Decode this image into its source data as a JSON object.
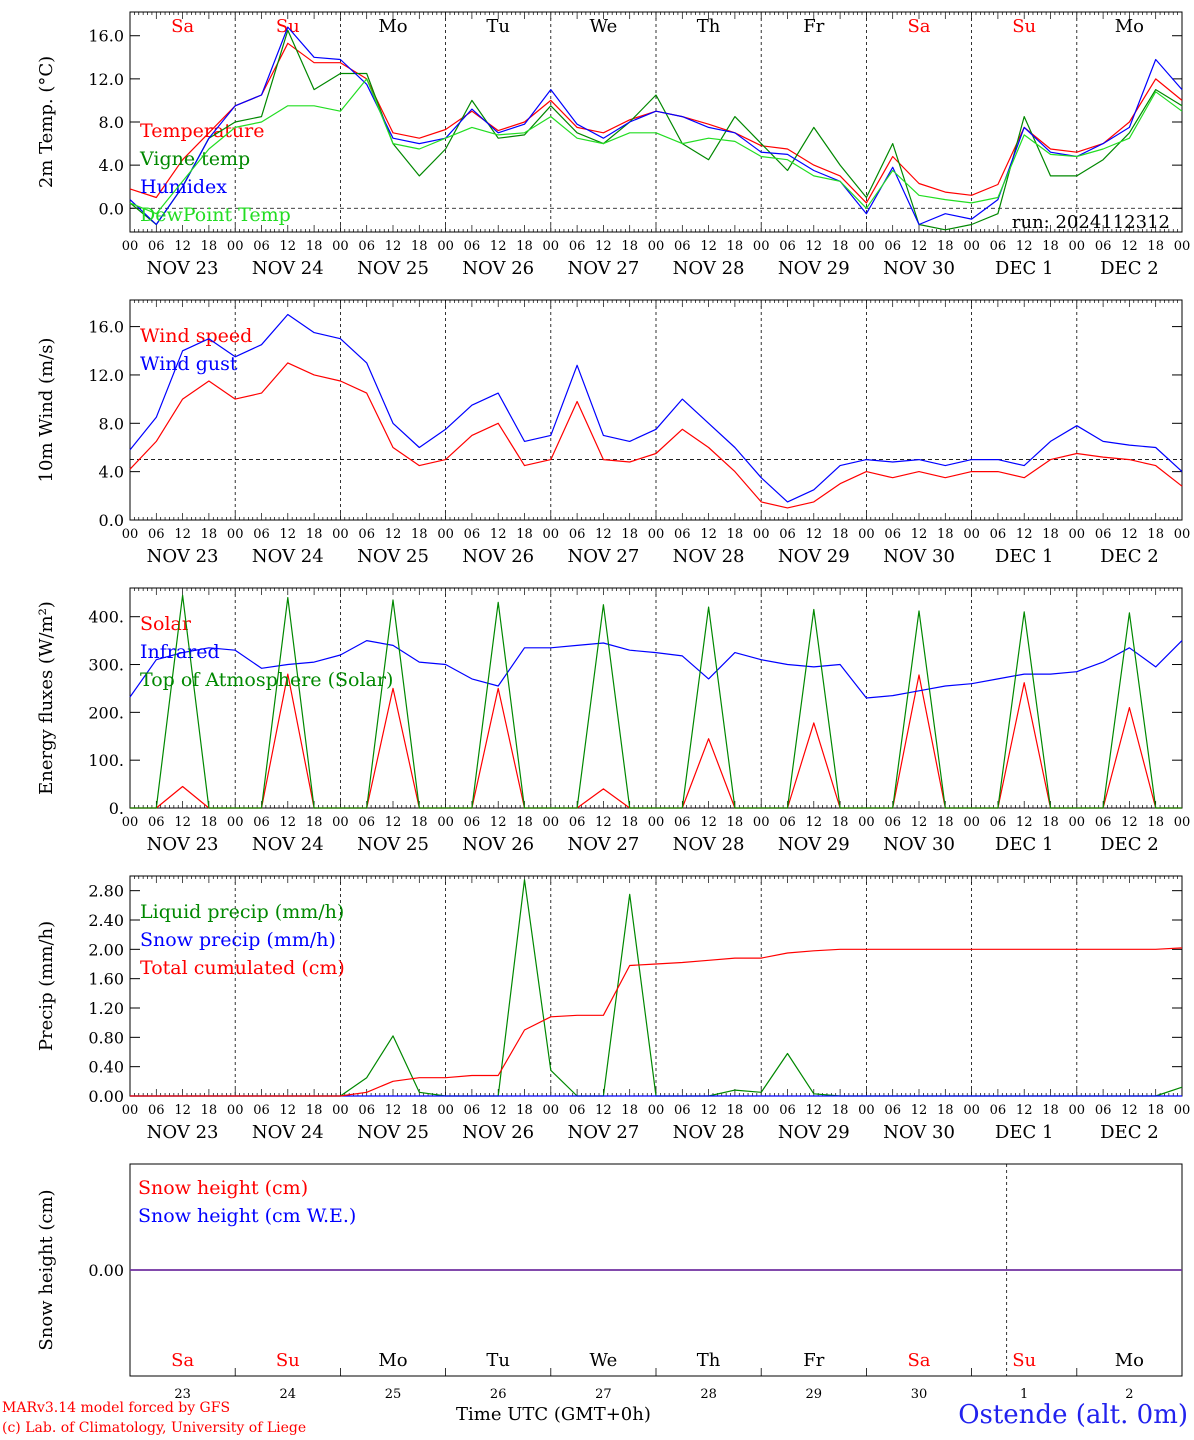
{
  "run_label": "run: 2024112312",
  "footer": {
    "model": "MARv3.14 model forced by GFS",
    "credit": "(c) Lab. of Climatology, University of Liege",
    "time_label": "Time UTC (GMT+0h)",
    "station": "Ostende (alt. 0m)"
  },
  "colors": {
    "red": "#ff0000",
    "green": "#008800",
    "blue": "#0000ff",
    "lightgreen": "#22dd22",
    "purple": "#7030a0",
    "weekend": "#ff0000"
  },
  "days": {
    "weekday_labels": [
      "Sa",
      "Su",
      "Mo",
      "Tu",
      "We",
      "Th",
      "Fr",
      "Sa",
      "Su",
      "Mo"
    ],
    "weekend_flags": [
      true,
      true,
      false,
      false,
      false,
      false,
      false,
      true,
      true,
      false
    ],
    "date_labels": [
      "NOV 23",
      "NOV 24",
      "NOV 25",
      "NOV 26",
      "NOV 27",
      "NOV 28",
      "NOV 29",
      "NOV 30",
      "DEC  1",
      "DEC  2"
    ],
    "day_numbers": [
      "23",
      "24",
      "25",
      "26",
      "27",
      "28",
      "29",
      "30",
      "1",
      "2"
    ],
    "hour_ticks": [
      "00",
      "06",
      "12",
      "18"
    ],
    "last_tick": "00"
  },
  "chart_data": [
    {
      "type": "line",
      "ylabel": "2m Temp. (°C)",
      "ylim": [
        -2.2,
        18.2
      ],
      "yticks": [
        "0.0",
        "4.0",
        "8.0",
        "12.0",
        "16.0"
      ],
      "ytick_values": [
        0,
        4,
        8,
        12,
        16
      ],
      "reference_line": 0,
      "x_unit": "hours since NOV 23 00 UTC",
      "x": [
        0,
        6,
        12,
        18,
        24,
        30,
        36,
        42,
        48,
        54,
        60,
        66,
        72,
        78,
        84,
        90,
        96,
        102,
        108,
        114,
        120,
        126,
        132,
        138,
        144,
        150,
        156,
        162,
        168,
        174,
        180,
        186,
        192,
        198,
        204,
        210,
        216,
        222,
        228,
        234,
        240
      ],
      "series": [
        {
          "name": "Temperature",
          "color": "red",
          "values": [
            1.8,
            1.0,
            4.5,
            7.0,
            9.5,
            10.5,
            15.3,
            13.5,
            13.5,
            12.0,
            7.0,
            6.5,
            7.3,
            9.0,
            7.2,
            8.0,
            10.0,
            7.5,
            7.0,
            8.2,
            9.0,
            8.5,
            7.8,
            7.0,
            5.8,
            5.5,
            4.0,
            3.0,
            0.5,
            4.8,
            2.3,
            1.5,
            1.2,
            2.2,
            7.5,
            5.5,
            5.2,
            6.0,
            8.0,
            12.0,
            10.0
          ]
        },
        {
          "name": "Vigne temp",
          "color": "green",
          "values": [
            0.5,
            -1.5,
            2.0,
            6.5,
            8.0,
            8.5,
            16.5,
            11.0,
            12.5,
            12.5,
            6.0,
            3.0,
            5.5,
            10.0,
            6.5,
            6.8,
            9.5,
            7.0,
            6.0,
            8.0,
            10.5,
            6.0,
            4.5,
            8.5,
            6.0,
            3.5,
            7.5,
            4.0,
            1.0,
            6.0,
            -1.5,
            -2.0,
            -1.5,
            -0.5,
            8.5,
            3.0,
            3.0,
            4.5,
            7.0,
            11.0,
            9.5
          ]
        },
        {
          "name": "Humidex",
          "color": "blue",
          "values": [
            0.8,
            -1.5,
            2.0,
            6.5,
            9.5,
            10.5,
            16.8,
            14.0,
            13.8,
            11.5,
            6.5,
            6.0,
            6.5,
            9.2,
            7.0,
            7.8,
            11.0,
            7.8,
            6.5,
            8.0,
            9.0,
            8.5,
            7.5,
            7.0,
            5.2,
            5.0,
            3.5,
            2.5,
            -0.5,
            3.8,
            -1.5,
            -0.5,
            -1.0,
            0.8,
            7.5,
            5.2,
            4.8,
            6.0,
            7.5,
            13.8,
            11.0
          ]
        },
        {
          "name": "DewPoint Temp",
          "color": "lightgreen",
          "values": [
            0.5,
            -0.5,
            2.5,
            5.5,
            7.5,
            8.0,
            9.5,
            9.5,
            9.0,
            12.0,
            6.0,
            5.5,
            6.5,
            7.5,
            6.8,
            7.0,
            8.5,
            6.5,
            6.0,
            7.0,
            7.0,
            6.0,
            6.5,
            6.2,
            4.8,
            4.5,
            3.0,
            2.5,
            0.0,
            3.5,
            1.2,
            0.8,
            0.5,
            1.0,
            6.8,
            5.0,
            4.8,
            5.5,
            6.5,
            10.8,
            9.0
          ]
        }
      ]
    },
    {
      "type": "line",
      "ylabel": "10m Wind (m/s)",
      "ylim": [
        0,
        18.2
      ],
      "yticks": [
        "0.0",
        "4.0",
        "8.0",
        "12.0",
        "16.0"
      ],
      "ytick_values": [
        0,
        4,
        8,
        12,
        16
      ],
      "reference_line": 5,
      "x_unit": "hours since NOV 23 00 UTC",
      "x": [
        0,
        6,
        12,
        18,
        24,
        30,
        36,
        42,
        48,
        54,
        60,
        66,
        72,
        78,
        84,
        90,
        96,
        102,
        108,
        114,
        120,
        126,
        132,
        138,
        144,
        150,
        156,
        162,
        168,
        174,
        180,
        186,
        192,
        198,
        204,
        210,
        216,
        222,
        228,
        234,
        240
      ],
      "series": [
        {
          "name": "Wind speed",
          "color": "red",
          "values": [
            4.2,
            6.5,
            10.0,
            11.5,
            10.0,
            10.5,
            13.0,
            12.0,
            11.5,
            10.5,
            6.0,
            4.5,
            5.0,
            7.0,
            8.0,
            4.5,
            5.0,
            9.8,
            5.0,
            4.8,
            5.5,
            7.5,
            6.0,
            4.0,
            1.5,
            1.0,
            1.5,
            3.0,
            4.0,
            3.5,
            4.0,
            3.5,
            4.0,
            4.0,
            3.5,
            5.0,
            5.5,
            5.2,
            5.0,
            4.5,
            2.8
          ]
        },
        {
          "name": "Wind gust",
          "color": "blue",
          "values": [
            5.8,
            8.5,
            14.0,
            15.0,
            13.5,
            14.5,
            17.0,
            15.5,
            15.0,
            13.0,
            8.0,
            6.0,
            7.5,
            9.5,
            10.5,
            6.5,
            7.0,
            12.8,
            7.0,
            6.5,
            7.5,
            10.0,
            8.0,
            6.0,
            3.5,
            1.5,
            2.5,
            4.5,
            5.0,
            4.8,
            5.0,
            4.5,
            5.0,
            5.0,
            4.5,
            6.5,
            7.8,
            6.5,
            6.2,
            6.0,
            4.0
          ]
        }
      ]
    },
    {
      "type": "line",
      "ylabel": "Energy fluxes (W/m²)",
      "ylim": [
        0,
        460
      ],
      "yticks": [
        "0.",
        "100.",
        "200.",
        "300.",
        "400."
      ],
      "ytick_values": [
        0,
        100,
        200,
        300,
        400
      ],
      "x_unit": "hours since NOV 23 00 UTC",
      "x": [
        0,
        6,
        12,
        18,
        24,
        30,
        36,
        42,
        48,
        54,
        60,
        66,
        72,
        78,
        84,
        90,
        96,
        102,
        108,
        114,
        120,
        126,
        132,
        138,
        144,
        150,
        156,
        162,
        168,
        174,
        180,
        186,
        192,
        198,
        204,
        210,
        216,
        222,
        228,
        234,
        240
      ],
      "series": [
        {
          "name": "Solar",
          "color": "red",
          "values": [
            0,
            0,
            45,
            0,
            0,
            0,
            280,
            0,
            0,
            0,
            250,
            0,
            0,
            0,
            250,
            0,
            0,
            0,
            40,
            0,
            0,
            0,
            145,
            0,
            0,
            0,
            178,
            0,
            0,
            0,
            278,
            0,
            0,
            0,
            262,
            0,
            0,
            0,
            210,
            0,
            0
          ]
        },
        {
          "name": "Infrared",
          "color": "blue",
          "values": [
            232,
            310,
            325,
            335,
            330,
            292,
            300,
            305,
            320,
            350,
            340,
            305,
            300,
            270,
            255,
            335,
            335,
            340,
            345,
            330,
            325,
            318,
            270,
            325,
            310,
            300,
            295,
            300,
            230,
            235,
            245,
            255,
            260,
            270,
            280,
            280,
            285,
            305,
            335,
            295,
            350
          ]
        },
        {
          "name": "Top of Atmosphere (Solar)",
          "color": "green",
          "values": [
            0,
            0,
            445,
            0,
            0,
            0,
            440,
            0,
            0,
            0,
            435,
            0,
            0,
            0,
            430,
            0,
            0,
            0,
            425,
            0,
            0,
            0,
            420,
            0,
            0,
            0,
            415,
            0,
            0,
            0,
            412,
            0,
            0,
            0,
            410,
            0,
            0,
            0,
            408,
            0,
            0
          ]
        }
      ]
    },
    {
      "type": "line",
      "ylabel": "Precip (mm/h)",
      "ylim": [
        0,
        3.0
      ],
      "yticks": [
        "0.00",
        "0.40",
        "0.80",
        "1.20",
        "1.60",
        "2.00",
        "2.40",
        "2.80"
      ],
      "ytick_values": [
        0,
        0.4,
        0.8,
        1.2,
        1.6,
        2.0,
        2.4,
        2.8
      ],
      "x_unit": "hours since NOV 23 00 UTC",
      "x": [
        0,
        6,
        12,
        18,
        24,
        30,
        36,
        42,
        48,
        54,
        60,
        66,
        72,
        78,
        84,
        90,
        96,
        102,
        108,
        114,
        120,
        126,
        132,
        138,
        144,
        150,
        156,
        162,
        168,
        174,
        180,
        186,
        192,
        198,
        204,
        210,
        216,
        222,
        228,
        234,
        240
      ],
      "series": [
        {
          "name": "Liquid precip (mm/h)",
          "color": "green",
          "values": [
            0,
            0,
            0,
            0,
            0,
            0,
            0,
            0,
            0,
            0.25,
            0.82,
            0.05,
            0,
            0,
            0,
            2.95,
            0.35,
            0,
            0,
            2.75,
            0,
            0,
            0,
            0.08,
            0.05,
            0.58,
            0.03,
            0,
            0,
            0,
            0,
            0,
            0,
            0,
            0,
            0,
            0,
            0,
            0,
            0,
            0.12
          ]
        },
        {
          "name": "Snow precip (mm/h)",
          "color": "blue",
          "values": [
            0,
            0,
            0,
            0,
            0,
            0,
            0,
            0,
            0,
            0,
            0,
            0,
            0,
            0,
            0,
            0,
            0,
            0,
            0,
            0,
            0,
            0,
            0,
            0,
            0,
            0,
            0,
            0,
            0,
            0,
            0,
            0,
            0,
            0,
            0,
            0,
            0,
            0,
            0,
            0,
            0
          ]
        },
        {
          "name": "Total cumulated (cm)",
          "color": "red",
          "values": [
            0,
            0,
            0,
            0,
            0,
            0,
            0,
            0,
            0,
            0.05,
            0.2,
            0.25,
            0.25,
            0.28,
            0.28,
            0.9,
            1.08,
            1.1,
            1.1,
            1.78,
            1.8,
            1.82,
            1.85,
            1.88,
            1.88,
            1.95,
            1.98,
            2.0,
            2.0,
            2.0,
            2.0,
            2.0,
            2.0,
            2.0,
            2.0,
            2.0,
            2.0,
            2.0,
            2.0,
            2.0,
            2.02
          ]
        }
      ]
    },
    {
      "type": "line",
      "ylabel": "Snow height (cm)",
      "ylim": [
        -1,
        1
      ],
      "yticks": [
        "0.00"
      ],
      "ytick_values": [
        0
      ],
      "x_unit": "hours since NOV 23 00 UTC",
      "x": [
        0,
        240
      ],
      "series": [
        {
          "name": "Snow height (cm)",
          "color": "red",
          "values": [
            0,
            0
          ]
        },
        {
          "name": "Snow height (cm W.E.)",
          "color": "blue",
          "values": [
            0,
            0
          ]
        }
      ]
    }
  ]
}
